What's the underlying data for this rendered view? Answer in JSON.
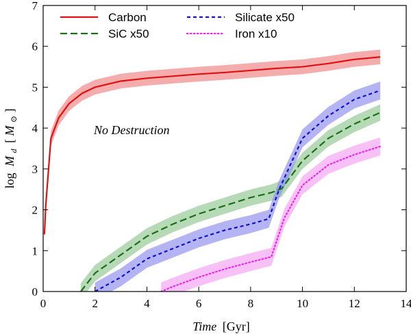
{
  "chart_data": {
    "type": "line",
    "annotation": "No Destruction",
    "xlabel": {
      "italic": "Time",
      "unit": "[Gyr]"
    },
    "ylabel": {
      "prefix": "log",
      "symbol": "M",
      "subscript": "d",
      "unit_open": "[",
      "unit_symbol": "M",
      "unit_sub": "⊙",
      "unit_close": "]"
    },
    "xlim": [
      0,
      14
    ],
    "ylim": [
      0,
      7
    ],
    "xticks": [
      "0",
      "2",
      "4",
      "6",
      "8",
      "10",
      "12",
      "14"
    ],
    "yticks": [
      "0",
      "1",
      "2",
      "3",
      "4",
      "5",
      "6",
      "7"
    ],
    "legend_position": "top-left",
    "series": [
      {
        "name": "Carbon",
        "color": "#e01010",
        "band_color": "#f08080",
        "dash": "solid",
        "x": [
          0.05,
          0.1,
          0.3,
          0.6,
          1.0,
          1.5,
          2.0,
          3.0,
          4.0,
          5.0,
          6.0,
          7.0,
          8.0,
          9.0,
          10.0,
          11.0,
          12.0,
          13.0
        ],
        "y": [
          1.4,
          2.1,
          3.75,
          4.25,
          4.6,
          4.85,
          5.0,
          5.15,
          5.22,
          5.27,
          5.32,
          5.36,
          5.41,
          5.46,
          5.5,
          5.58,
          5.68,
          5.74
        ],
        "band": 0.18
      },
      {
        "name": "SiC x50",
        "color": "#1a6e1a",
        "band_color": "#8fc48f",
        "dash": "dashed",
        "x": [
          1.45,
          2.0,
          3.0,
          4.0,
          5.0,
          6.0,
          7.0,
          8.0,
          8.8,
          9.2,
          10.0,
          11.0,
          12.0,
          13.0
        ],
        "y": [
          0.0,
          0.45,
          0.9,
          1.35,
          1.65,
          1.9,
          2.1,
          2.3,
          2.42,
          2.52,
          3.2,
          3.75,
          4.1,
          4.38
        ],
        "band": 0.2
      },
      {
        "name": "Silicate x50",
        "color": "#1010d0",
        "band_color": "#8c8cf0",
        "dash": "short-dashed",
        "x": [
          2.0,
          3.0,
          4.0,
          5.0,
          6.0,
          7.0,
          8.0,
          8.7,
          9.1,
          10.0,
          11.0,
          12.0,
          13.0
        ],
        "y": [
          0.0,
          0.35,
          0.8,
          1.05,
          1.3,
          1.5,
          1.65,
          1.78,
          2.5,
          3.75,
          4.3,
          4.7,
          4.92
        ],
        "band": 0.22
      },
      {
        "name": "Iron x10",
        "color": "#f020f0",
        "band_color": "#f2a0f2",
        "dash": "dotted",
        "x": [
          4.55,
          5.0,
          6.0,
          7.0,
          8.0,
          8.8,
          9.3,
          10.0,
          11.0,
          12.0,
          13.0
        ],
        "y": [
          0.0,
          0.12,
          0.35,
          0.55,
          0.72,
          0.85,
          1.8,
          2.6,
          3.1,
          3.35,
          3.55
        ],
        "band": 0.22
      }
    ]
  }
}
